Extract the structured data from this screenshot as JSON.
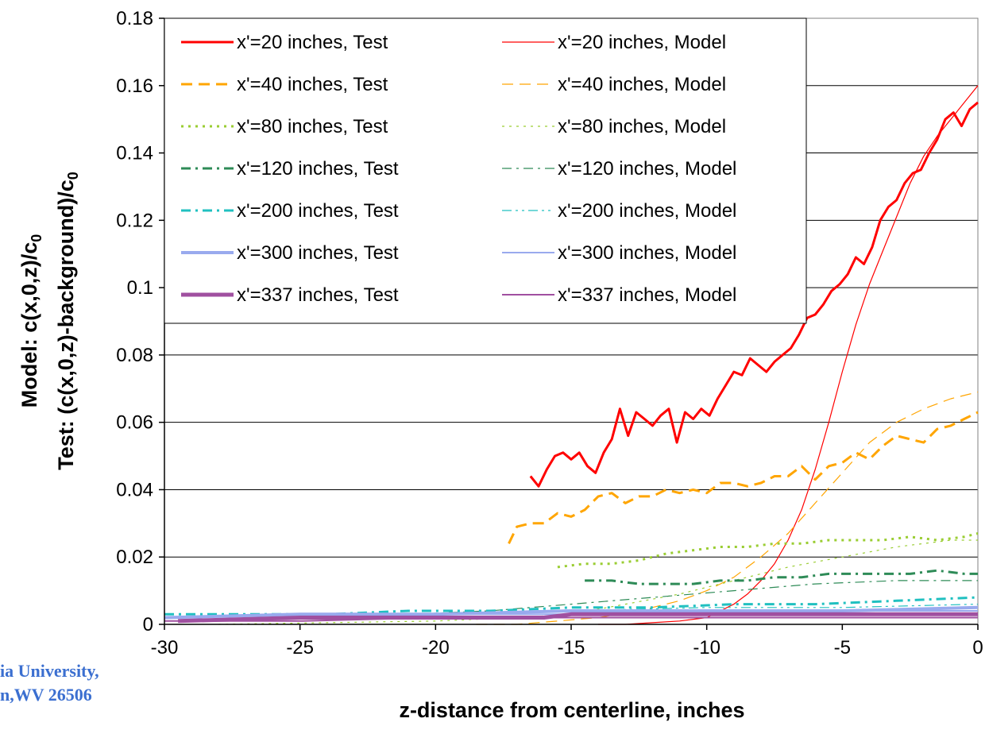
{
  "chart_data": {
    "type": "line",
    "xlabel": "z-distance from centerline, inches",
    "ylabel_lines": [
      "Model: c(x,0,z)/c",
      "Test: (c(x,0,z)-background)/c"
    ],
    "ylabel_subscript": "0",
    "xlim": [
      -30,
      0
    ],
    "ylim": [
      0,
      0.18
    ],
    "x_ticks": [
      -30,
      -25,
      -20,
      -15,
      -10,
      -5,
      0
    ],
    "x_tick_labels": [
      "-30",
      "-25",
      "-20",
      "-15",
      "-10",
      "-5",
      "0"
    ],
    "y_ticks": [
      0,
      0.02,
      0.04,
      0.06,
      0.08,
      0.1,
      0.12,
      0.14,
      0.16,
      0.18
    ],
    "y_tick_labels": [
      "0",
      "0.02",
      "0.04",
      "0.06",
      "0.08",
      "0.1",
      "0.12",
      "0.14",
      "0.16",
      "0.18"
    ],
    "grid": "horizontal",
    "legend_position": "top-left",
    "series": [
      {
        "name": "x'=20 inches, Test",
        "color": "#ff0000",
        "style": "solid",
        "width": 3,
        "x": [
          -16.5,
          -16.2,
          -15.9,
          -15.6,
          -15.3,
          -15.0,
          -14.7,
          -14.4,
          -14.1,
          -13.8,
          -13.5,
          -13.2,
          -12.9,
          -12.6,
          -12.3,
          -12.0,
          -11.7,
          -11.4,
          -11.1,
          -10.8,
          -10.5,
          -10.2,
          -9.9,
          -9.6,
          -9.3,
          -9.0,
          -8.7,
          -8.4,
          -8.1,
          -7.8,
          -7.5,
          -7.2,
          -6.9,
          -6.6,
          -6.3,
          -6.0,
          -5.7,
          -5.4,
          -5.1,
          -4.8,
          -4.5,
          -4.2,
          -3.9,
          -3.6,
          -3.3,
          -3.0,
          -2.7,
          -2.4,
          -2.1,
          -1.8,
          -1.5,
          -1.2,
          -0.9,
          -0.6,
          -0.3,
          0.0
        ],
        "y": [
          0.044,
          0.041,
          0.046,
          0.05,
          0.051,
          0.049,
          0.051,
          0.047,
          0.045,
          0.051,
          0.055,
          0.064,
          0.056,
          0.063,
          0.061,
          0.059,
          0.062,
          0.064,
          0.054,
          0.063,
          0.061,
          0.064,
          0.062,
          0.067,
          0.071,
          0.075,
          0.074,
          0.079,
          0.077,
          0.075,
          0.078,
          0.08,
          0.082,
          0.086,
          0.091,
          0.092,
          0.095,
          0.099,
          0.101,
          0.104,
          0.109,
          0.107,
          0.112,
          0.12,
          0.124,
          0.126,
          0.131,
          0.134,
          0.135,
          0.14,
          0.144,
          0.15,
          0.152,
          0.148,
          0.153,
          0.155
        ]
      },
      {
        "name": "x'=20 inches, Model",
        "color": "#ff0000",
        "style": "solid",
        "width": 1.2,
        "x": [
          -14.0,
          -13.0,
          -12.0,
          -11.0,
          -10.0,
          -9.0,
          -8.5,
          -8.0,
          -7.5,
          -7.0,
          -6.5,
          -6.0,
          -5.5,
          -5.0,
          -4.5,
          -4.0,
          -3.5,
          -3.0,
          -2.5,
          -2.0,
          -1.5,
          -1.0,
          -0.5,
          0.0
        ],
        "y": [
          0.0,
          0.0,
          0.0005,
          0.001,
          0.002,
          0.006,
          0.009,
          0.013,
          0.018,
          0.025,
          0.034,
          0.046,
          0.06,
          0.075,
          0.089,
          0.101,
          0.111,
          0.121,
          0.131,
          0.139,
          0.145,
          0.15,
          0.155,
          0.16
        ]
      },
      {
        "name": "x'=40 inches, Test",
        "color": "#ffa500",
        "style": "dash",
        "width": 3,
        "x": [
          -17.3,
          -17.0,
          -16.5,
          -16.0,
          -15.5,
          -15.0,
          -14.5,
          -14.0,
          -13.5,
          -13.0,
          -12.5,
          -12.0,
          -11.5,
          -11.0,
          -10.5,
          -10.0,
          -9.5,
          -9.0,
          -8.5,
          -8.0,
          -7.5,
          -7.0,
          -6.5,
          -6.0,
          -5.5,
          -5.0,
          -4.5,
          -4.0,
          -3.5,
          -3.0,
          -2.5,
          -2.0,
          -1.5,
          -1.0,
          -0.5,
          0.0
        ],
        "y": [
          0.024,
          0.029,
          0.03,
          0.03,
          0.033,
          0.032,
          0.034,
          0.038,
          0.039,
          0.036,
          0.038,
          0.038,
          0.04,
          0.039,
          0.04,
          0.039,
          0.042,
          0.042,
          0.041,
          0.042,
          0.044,
          0.044,
          0.047,
          0.043,
          0.047,
          0.048,
          0.051,
          0.049,
          0.053,
          0.056,
          0.055,
          0.054,
          0.058,
          0.059,
          0.061,
          0.063
        ]
      },
      {
        "name": "x'=40 inches, Model",
        "color": "#ffa500",
        "style": "dash",
        "width": 1.2,
        "x": [
          -18.5,
          -17.0,
          -15.5,
          -14.0,
          -12.5,
          -11.0,
          -10.0,
          -9.0,
          -8.0,
          -7.0,
          -6.0,
          -5.0,
          -4.0,
          -3.0,
          -2.0,
          -1.0,
          0.0
        ],
        "y": [
          0.0,
          0.0,
          0.001,
          0.002,
          0.004,
          0.007,
          0.01,
          0.014,
          0.02,
          0.027,
          0.036,
          0.045,
          0.054,
          0.06,
          0.064,
          0.067,
          0.069
        ]
      },
      {
        "name": "x'=80 inches, Test",
        "color": "#9acd32",
        "style": "dot",
        "width": 3,
        "x": [
          -15.5,
          -14.5,
          -13.5,
          -12.5,
          -11.5,
          -10.5,
          -9.5,
          -8.5,
          -7.5,
          -6.5,
          -5.5,
          -4.5,
          -3.5,
          -2.5,
          -1.5,
          -0.5,
          0.0
        ],
        "y": [
          0.017,
          0.018,
          0.018,
          0.019,
          0.021,
          0.022,
          0.023,
          0.023,
          0.024,
          0.024,
          0.025,
          0.025,
          0.025,
          0.026,
          0.025,
          0.026,
          0.027
        ]
      },
      {
        "name": "x'=80 inches, Model",
        "color": "#9acd32",
        "style": "dot",
        "width": 1.2,
        "x": [
          -28.0,
          -24.0,
          -20.0,
          -17.0,
          -15.0,
          -13.0,
          -11.0,
          -9.0,
          -7.0,
          -5.0,
          -3.0,
          -1.0,
          0.0
        ],
        "y": [
          0.0,
          0.0005,
          0.001,
          0.002,
          0.003,
          0.006,
          0.009,
          0.013,
          0.017,
          0.02,
          0.023,
          0.025,
          0.025
        ]
      },
      {
        "name": "x'=120 inches, Test",
        "color": "#2e8b57",
        "style": "dashdot",
        "width": 3,
        "x": [
          -14.5,
          -13.5,
          -12.5,
          -11.5,
          -10.5,
          -9.5,
          -8.5,
          -7.5,
          -6.5,
          -5.5,
          -4.5,
          -3.5,
          -2.5,
          -1.5,
          -0.5,
          0.0
        ],
        "y": [
          0.013,
          0.013,
          0.012,
          0.012,
          0.012,
          0.013,
          0.013,
          0.014,
          0.014,
          0.015,
          0.015,
          0.015,
          0.015,
          0.016,
          0.015,
          0.015
        ]
      },
      {
        "name": "x'=120 inches, Model",
        "color": "#2e8b57",
        "style": "dashdot",
        "width": 1.2,
        "x": [
          -29.0,
          -25.0,
          -21.0,
          -18.0,
          -15.0,
          -12.0,
          -9.0,
          -6.0,
          -3.0,
          0.0
        ],
        "y": [
          0.001,
          0.002,
          0.003,
          0.004,
          0.006,
          0.008,
          0.01,
          0.012,
          0.013,
          0.013
        ]
      },
      {
        "name": "x'=200 inches, Test",
        "color": "#20c0c0",
        "style": "dashdot",
        "width": 3,
        "x": [
          -30.0,
          -27.0,
          -24.0,
          -21.0,
          -18.0,
          -15.0,
          -12.0,
          -9.0,
          -6.0,
          -3.0,
          0.0
        ],
        "y": [
          0.003,
          0.003,
          0.003,
          0.004,
          0.004,
          0.005,
          0.005,
          0.006,
          0.006,
          0.007,
          0.008
        ]
      },
      {
        "name": "x'=200 inches, Model",
        "color": "#20c0c0",
        "style": "dashdotdot",
        "width": 1.2,
        "x": [
          -30.0,
          -25.0,
          -20.0,
          -15.0,
          -10.0,
          -5.0,
          0.0
        ],
        "y": [
          0.002,
          0.003,
          0.003,
          0.004,
          0.005,
          0.005,
          0.006
        ]
      },
      {
        "name": "x'=300 inches, Test",
        "color": "#99aaee",
        "style": "solid",
        "width": 4,
        "x": [
          -30.0,
          -25.0,
          -20.0,
          -15.0,
          -10.0,
          -5.0,
          0.0
        ],
        "y": [
          0.002,
          0.003,
          0.003,
          0.004,
          0.004,
          0.004,
          0.005
        ]
      },
      {
        "name": "x'=300 inches, Model",
        "color": "#99aaee",
        "style": "solid",
        "width": 2,
        "x": [
          -30.0,
          -25.0,
          -20.0,
          -15.0,
          -10.0,
          -5.0,
          0.0
        ],
        "y": [
          0.002,
          0.003,
          0.003,
          0.003,
          0.004,
          0.004,
          0.004
        ]
      },
      {
        "name": "x'=337 inches, Test",
        "color": "#a050a0",
        "style": "solid",
        "width": 5,
        "x": [
          -29.5,
          -25.0,
          -20.0,
          -16.0,
          -15.0,
          -10.0,
          -5.0,
          0.0
        ],
        "y": [
          0.001,
          0.002,
          0.002,
          0.002,
          0.003,
          0.003,
          0.003,
          0.003
        ]
      },
      {
        "name": "x'=337 inches, Model",
        "color": "#a050a0",
        "style": "solid",
        "width": 2,
        "x": [
          -30.0,
          -25.0,
          -20.0,
          -15.0,
          -10.0,
          -5.0,
          0.0
        ],
        "y": [
          0.001,
          0.001,
          0.002,
          0.002,
          0.002,
          0.002,
          0.002
        ]
      }
    ]
  },
  "footer": {
    "line1": "ia University,",
    "line2": "n,WV 26506"
  }
}
